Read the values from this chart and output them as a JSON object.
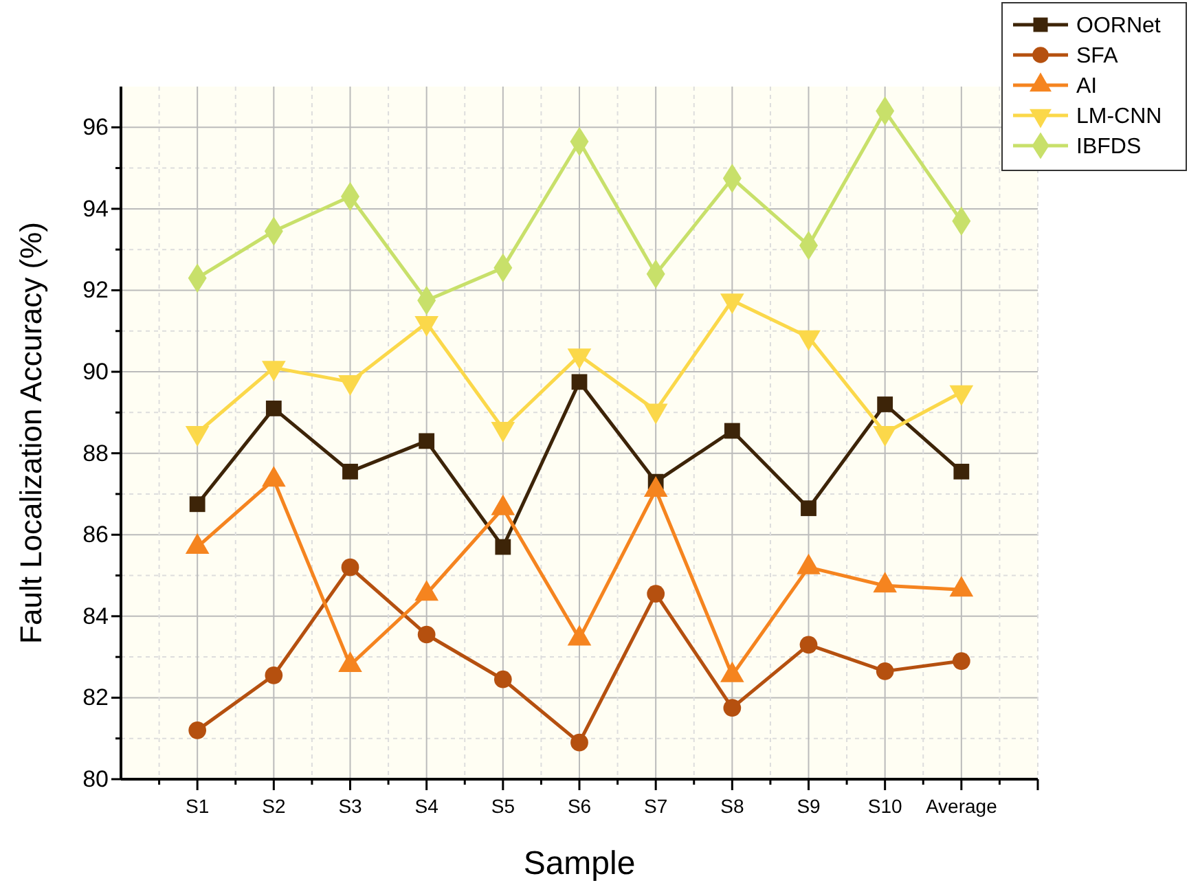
{
  "chart_data": {
    "type": "line",
    "xlabel": "Sample",
    "ylabel": "Fault Localization Accuracy (%)",
    "categories": [
      "S1",
      "S2",
      "S3",
      "S4",
      "S5",
      "S6",
      "S7",
      "S8",
      "S9",
      "S10",
      "Average"
    ],
    "series": [
      {
        "name": "OORNet",
        "color": "#3d2408",
        "marker": "square",
        "values": [
          86.75,
          89.1,
          87.55,
          88.3,
          85.7,
          89.75,
          87.3,
          88.55,
          86.65,
          89.2,
          87.55
        ]
      },
      {
        "name": "SFA",
        "color": "#b5500f",
        "marker": "circle",
        "values": [
          81.2,
          82.55,
          85.2,
          83.55,
          82.45,
          80.9,
          84.55,
          81.75,
          83.3,
          82.65,
          82.9
        ]
      },
      {
        "name": "AI",
        "color": "#f5841f",
        "marker": "triangle",
        "values": [
          85.7,
          87.35,
          82.8,
          84.55,
          86.65,
          83.45,
          87.1,
          82.55,
          85.2,
          84.75,
          84.65
        ]
      },
      {
        "name": "LM-CNN",
        "color": "#fbd84a",
        "marker": "triangle-down",
        "values": [
          88.5,
          90.1,
          89.75,
          91.2,
          88.6,
          90.4,
          89.05,
          91.75,
          90.85,
          88.5,
          89.5
        ]
      },
      {
        "name": "IBFDS",
        "color": "#c8e06a",
        "marker": "diamond",
        "values": [
          92.3,
          93.45,
          94.3,
          91.75,
          92.55,
          95.65,
          92.4,
          94.75,
          93.1,
          96.4,
          93.7
        ]
      }
    ],
    "ylim": [
      80,
      97
    ],
    "yticks": [
      80,
      {
        "value": 81,
        "label": null
      },
      82,
      {
        "value": 83,
        "label": null
      },
      84,
      {
        "value": 85,
        "label": null
      },
      86,
      {
        "value": 87,
        "label": null
      },
      88,
      {
        "value": 89,
        "label": null
      },
      90,
      {
        "value": 91,
        "label": null
      },
      92,
      {
        "value": 93,
        "label": null
      },
      94,
      {
        "value": 95,
        "label": null
      },
      96
    ],
    "grid": true,
    "legend": "top right",
    "line_style": "solid"
  }
}
